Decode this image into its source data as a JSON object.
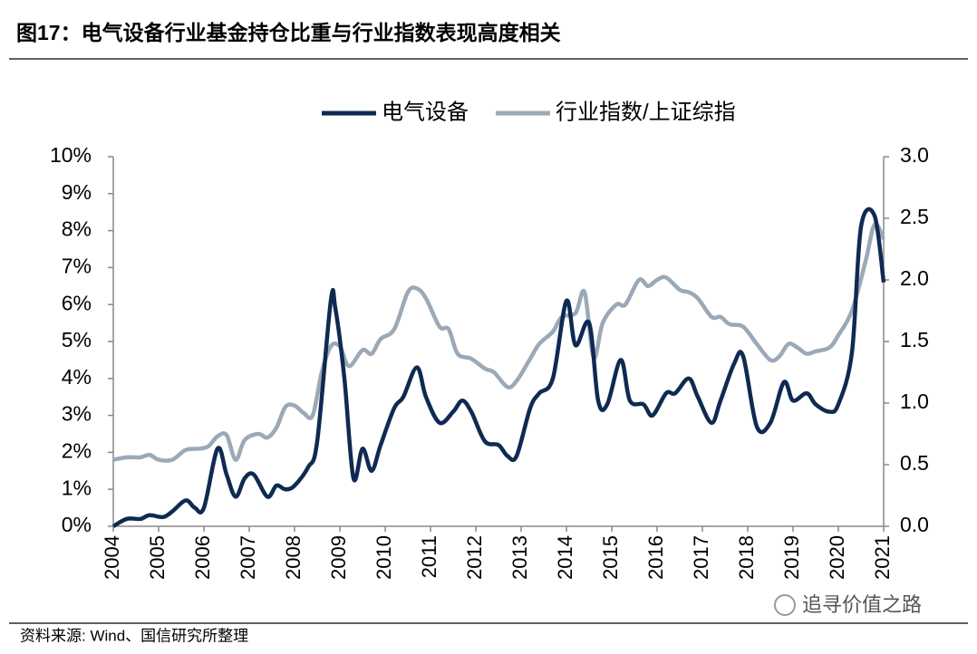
{
  "chart_data": {
    "type": "line",
    "title": "图17：电气设备行业基金持仓比重与行业指数表现高度相关",
    "source": "资料来源: Wind、国信研究所整理",
    "watermark": "追寻价值之路",
    "xlim": [
      2004,
      2021
    ],
    "xticks": [
      2004,
      2005,
      2006,
      2007,
      2008,
      2009,
      2010,
      2011,
      2012,
      2013,
      2014,
      2015,
      2016,
      2017,
      2018,
      2019,
      2020,
      2021
    ],
    "ylim": [
      0,
      10
    ],
    "yticks": [
      {
        "value": 0,
        "label": "0%"
      },
      {
        "value": 1,
        "label": "1%"
      },
      {
        "value": 2,
        "label": "2%"
      },
      {
        "value": 3,
        "label": "3%"
      },
      {
        "value": 4,
        "label": "4%"
      },
      {
        "value": 5,
        "label": "5%"
      },
      {
        "value": 6,
        "label": "6%"
      },
      {
        "value": 7,
        "label": "7%"
      },
      {
        "value": 8,
        "label": "8%"
      },
      {
        "value": 9,
        "label": "9%"
      },
      {
        "value": 10,
        "label": "10%"
      }
    ],
    "y2lim": [
      0,
      3
    ],
    "y2ticks": [
      {
        "value": 0,
        "label": "0.0"
      },
      0.5,
      {
        "value": 1,
        "label": "1.0"
      },
      1.5,
      {
        "value": 2,
        "label": "2.0"
      },
      2.5,
      {
        "value": 3,
        "label": "3.0"
      }
    ],
    "legend": "top",
    "series": [
      {
        "name": "电气设备",
        "color": "#0f2a52",
        "axis": "y",
        "x": [
          2004.0,
          2004.3,
          2004.6,
          2004.8,
          2005.1,
          2005.3,
          2005.6,
          2005.8,
          2006.0,
          2006.3,
          2006.5,
          2006.7,
          2006.9,
          2007.1,
          2007.4,
          2007.6,
          2007.8,
          2008.0,
          2008.3,
          2008.5,
          2008.8,
          2008.9,
          2009.1,
          2009.3,
          2009.5,
          2009.7,
          2009.9,
          2010.2,
          2010.4,
          2010.7,
          2010.9,
          2011.2,
          2011.5,
          2011.7,
          2011.9,
          2012.2,
          2012.5,
          2012.7,
          2012.9,
          2013.2,
          2013.4,
          2013.7,
          2014.0,
          2014.2,
          2014.5,
          2014.7,
          2014.9,
          2015.2,
          2015.4,
          2015.7,
          2015.9,
          2016.2,
          2016.4,
          2016.7,
          2016.9,
          2017.2,
          2017.4,
          2017.7,
          2017.9,
          2018.2,
          2018.5,
          2018.8,
          2019.0,
          2019.3,
          2019.5,
          2019.8,
          2020.0,
          2020.3,
          2020.5,
          2020.8,
          2021.0
        ],
        "values": [
          0,
          0.2,
          0.2,
          0.3,
          0.25,
          0.4,
          0.7,
          0.5,
          0.5,
          2.1,
          1.4,
          0.8,
          1.3,
          1.4,
          0.8,
          1.1,
          1.0,
          1.1,
          1.6,
          2.3,
          6.1,
          5.9,
          4.0,
          1.3,
          2.1,
          1.5,
          2.2,
          3.2,
          3.5,
          4.3,
          3.5,
          2.8,
          3.1,
          3.4,
          3.1,
          2.3,
          2.2,
          1.9,
          1.9,
          3.2,
          3.6,
          4.0,
          6.1,
          4.9,
          5.5,
          3.4,
          3.3,
          4.5,
          3.4,
          3.3,
          3.0,
          3.6,
          3.6,
          4.0,
          3.5,
          2.8,
          3.4,
          4.4,
          4.6,
          2.7,
          2.8,
          3.9,
          3.4,
          3.6,
          3.3,
          3.1,
          3.3,
          4.7,
          8.1,
          8.4,
          6.6
        ]
      },
      {
        "name": "行业指数/上证综指",
        "color": "#9ba9b7",
        "axis": "y2",
        "x": [
          2004.0,
          2004.3,
          2004.6,
          2004.8,
          2005.0,
          2005.3,
          2005.6,
          2005.9,
          2006.1,
          2006.3,
          2006.5,
          2006.7,
          2006.9,
          2007.2,
          2007.4,
          2007.6,
          2007.8,
          2008.0,
          2008.2,
          2008.4,
          2008.6,
          2008.8,
          2009.0,
          2009.2,
          2009.5,
          2009.7,
          2009.9,
          2010.2,
          2010.5,
          2010.7,
          2010.9,
          2011.2,
          2011.4,
          2011.6,
          2011.9,
          2012.2,
          2012.4,
          2012.7,
          2012.9,
          2013.2,
          2013.4,
          2013.7,
          2013.9,
          2014.2,
          2014.4,
          2014.6,
          2014.8,
          2015.1,
          2015.3,
          2015.6,
          2015.8,
          2016.0,
          2016.2,
          2016.5,
          2016.7,
          2016.9,
          2017.2,
          2017.4,
          2017.6,
          2017.9,
          2018.2,
          2018.5,
          2018.7,
          2018.9,
          2019.1,
          2019.3,
          2019.5,
          2019.8,
          2020.0,
          2020.3,
          2020.6,
          2020.8,
          2021.0
        ],
        "values": [
          0.54,
          0.56,
          0.56,
          0.58,
          0.54,
          0.54,
          0.62,
          0.63,
          0.65,
          0.73,
          0.74,
          0.54,
          0.7,
          0.75,
          0.72,
          0.8,
          0.97,
          0.98,
          0.92,
          0.9,
          1.25,
          1.46,
          1.46,
          1.3,
          1.43,
          1.4,
          1.52,
          1.6,
          1.9,
          1.93,
          1.85,
          1.62,
          1.6,
          1.4,
          1.36,
          1.28,
          1.25,
          1.13,
          1.18,
          1.36,
          1.48,
          1.58,
          1.7,
          1.73,
          1.9,
          1.37,
          1.65,
          1.8,
          1.8,
          2.0,
          1.95,
          2.0,
          2.02,
          1.92,
          1.9,
          1.85,
          1.7,
          1.7,
          1.64,
          1.62,
          1.48,
          1.35,
          1.38,
          1.48,
          1.45,
          1.4,
          1.42,
          1.45,
          1.55,
          1.75,
          2.15,
          2.45,
          2.33
        ]
      }
    ]
  }
}
